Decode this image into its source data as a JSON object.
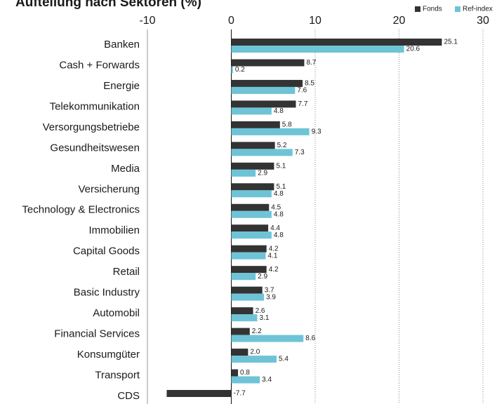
{
  "chart_data": {
    "type": "hbar",
    "title": "Aufteilung nach Sektoren (%)",
    "categories": [
      "Banken",
      "Cash + Forwards",
      "Energie",
      "Telekommunikation",
      "Versorgungsbetriebe",
      "Gesundheitswesen",
      "Media",
      "Versicherung",
      "Technology & Electronics",
      "Immobilien",
      "Capital Goods",
      "Retail",
      "Basic Industry",
      "Automobil",
      "Financial Services",
      "Konsumgüter",
      "Transport",
      "CDS"
    ],
    "series": [
      {
        "name": "Fonds",
        "color": "#333333",
        "values": [
          25.1,
          8.7,
          8.5,
          7.7,
          5.8,
          5.2,
          5.1,
          5.1,
          4.5,
          4.4,
          4.2,
          4.2,
          3.7,
          2.6,
          2.2,
          2.0,
          0.8,
          -7.7
        ],
        "value_labels": [
          "25.1",
          "8.7",
          "8.5",
          "7.7",
          "5.8",
          "5.2",
          "5.1",
          "5.1",
          "4.5",
          "4.4",
          "4.2",
          "4.2",
          "3.7",
          "2.6",
          "2.2",
          "2.0",
          "0.8",
          "-7.7"
        ]
      },
      {
        "name": "Ref-index",
        "color": "#6ec4d6",
        "values": [
          20.6,
          0.2,
          7.6,
          4.8,
          9.3,
          7.3,
          2.9,
          4.8,
          4.8,
          4.8,
          4.1,
          2.9,
          3.9,
          3.1,
          8.6,
          5.4,
          3.4,
          null
        ],
        "value_labels": [
          "20.6",
          "0.2",
          "7.6",
          "4.8",
          "9.3",
          "7.3",
          "2.9",
          "4.8",
          "4.8",
          "4.8",
          "4.1",
          "2.9",
          "3.9",
          "3.1",
          "8.6",
          "5.4",
          "3.4",
          null
        ]
      }
    ],
    "xlim": [
      -10,
      30
    ],
    "xticks": [
      -10,
      0,
      10,
      20,
      30
    ],
    "grid": true,
    "legend": "top-right"
  }
}
